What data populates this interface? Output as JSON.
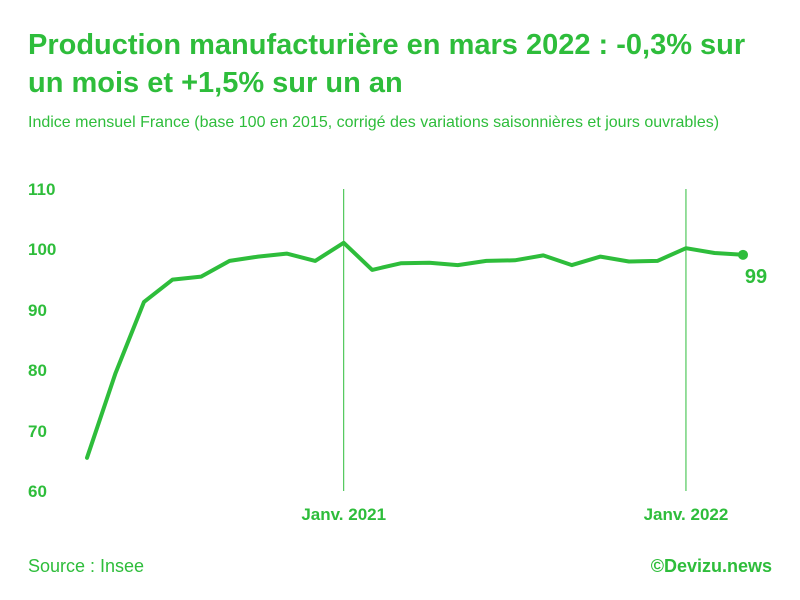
{
  "title": "Production manufacturière en mars 2022 : -0,3% sur un mois et +1,5% sur un an",
  "subtitle": "Indice mensuel France (base 100 en 2015, corrigé des variations saisonnières et jours ouvrables)",
  "source": "Source : Insee",
  "credit": "©Devizu.news",
  "colors": {
    "accent": "#2ebd3b"
  },
  "chart_data": {
    "type": "line",
    "x": [
      "2020-04",
      "2020-05",
      "2020-06",
      "2020-07",
      "2020-08",
      "2020-09",
      "2020-10",
      "2020-11",
      "2020-12",
      "2021-01",
      "2021-02",
      "2021-03",
      "2021-04",
      "2021-05",
      "2021-06",
      "2021-07",
      "2021-08",
      "2021-09",
      "2021-10",
      "2021-11",
      "2021-12",
      "2022-01",
      "2022-02",
      "2022-03"
    ],
    "series": [
      {
        "values": [
          65.5,
          79.5,
          91.3,
          95.0,
          95.5,
          98.1,
          98.8,
          99.3,
          98.1,
          101.1,
          96.6,
          97.7,
          97.8,
          97.4,
          98.1,
          98.2,
          99.0,
          97.4,
          98.8,
          98.0,
          98.1,
          100.2,
          99.4,
          99.1
        ]
      }
    ],
    "yticks": [
      "110",
      "100",
      "90",
      "80",
      "70",
      "60"
    ],
    "ylim": [
      60,
      110
    ],
    "xtick_labels": [
      {
        "label": "Janv. 2021",
        "x": "2021-01"
      },
      {
        "label": "Janv. 2022",
        "x": "2022-01"
      }
    ],
    "last_value_label": "99",
    "grid": false
  }
}
